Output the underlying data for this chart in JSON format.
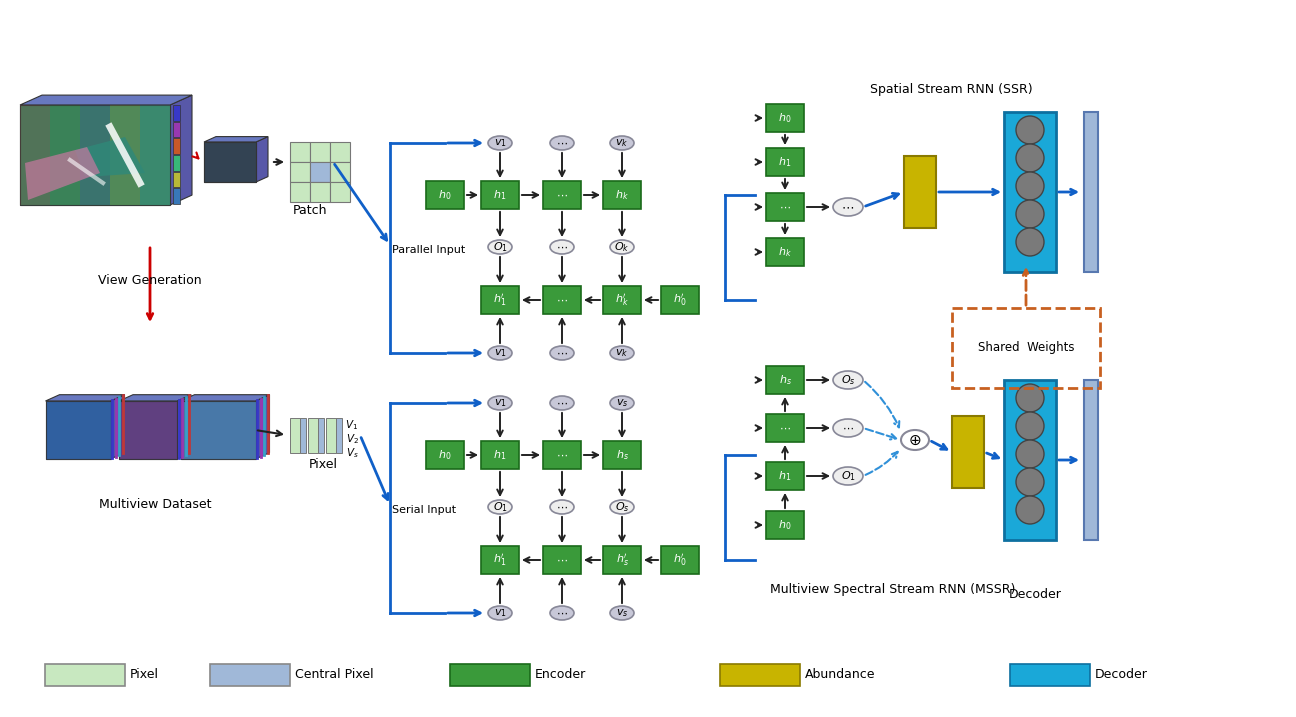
{
  "bg_color": "#ffffff",
  "encoder_color": "#3a9a3a",
  "encoder_edge": "#1a6a1a",
  "abundance_color": "#c8b400",
  "abundance_edge": "#8a7a00",
  "decoder_color": "#1aa8d8",
  "decoder_edge": "#0d70a0",
  "pixel_color": "#c8e8c0",
  "central_pixel_color": "#a0b8d8",
  "node_color": "#c8c8d8",
  "node_edge": "#888898",
  "blue_arrow": "#1060c8",
  "black_arrow": "#222222",
  "shared_weight_color": "#c86020",
  "red_arrow": "#cc0000",
  "legend_items": [
    {
      "label": "Pixel",
      "color": "#c8e8c0",
      "edge": "#888888"
    },
    {
      "label": "Central Pixel",
      "color": "#a0b8d8",
      "edge": "#888888"
    },
    {
      "label": "Encoder",
      "color": "#3a9a3a",
      "edge": "#1a6a1a"
    },
    {
      "label": "Abundance",
      "color": "#c8b400",
      "edge": "#8a7a00"
    },
    {
      "label": "Decoder",
      "color": "#1aa8d8",
      "edge": "#0d70a0"
    }
  ]
}
